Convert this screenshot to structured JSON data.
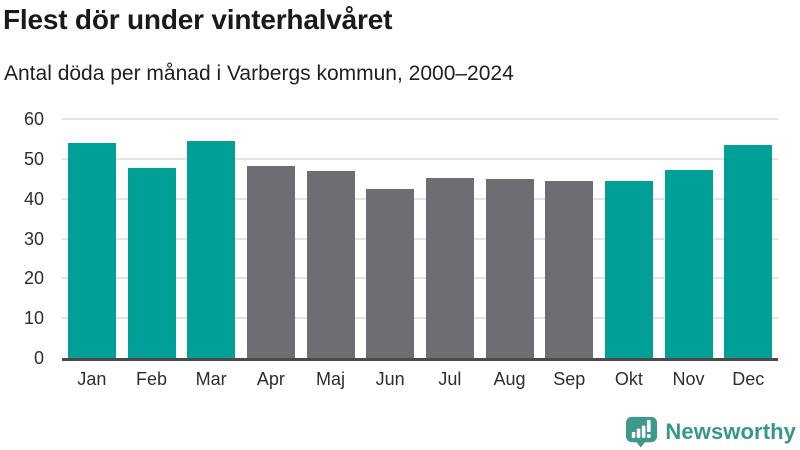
{
  "header": {
    "title": "Flest dör under vinterhalvåret",
    "subtitle": "Antal döda per månad i Varbergs kommun, 2000–2024"
  },
  "chart_data": {
    "type": "bar",
    "title": "Flest dör under vinterhalvåret",
    "subtitle": "Antal döda per månad i Varbergs kommun, 2000–2024",
    "categories": [
      "Jan",
      "Feb",
      "Mar",
      "Apr",
      "Maj",
      "Jun",
      "Jul",
      "Aug",
      "Sep",
      "Okt",
      "Nov",
      "Dec"
    ],
    "values": [
      54.0,
      47.7,
      54.4,
      48.2,
      47.0,
      42.5,
      45.2,
      44.9,
      44.4,
      44.4,
      47.2,
      53.5
    ],
    "highlighted": [
      true,
      true,
      true,
      false,
      false,
      false,
      false,
      false,
      false,
      true,
      true,
      true
    ],
    "highlight_color": "#00a099",
    "muted_color": "#6e6d73",
    "xlabel": "",
    "ylabel": "",
    "ylim": [
      0,
      60
    ],
    "y_ticks": [
      0,
      10,
      20,
      30,
      40,
      50,
      60
    ],
    "grid": "horizontal",
    "legend": "none"
  },
  "footer": {
    "brand_name": "Newsworthy",
    "brand_color": "#38978d",
    "logo_icon": "bar-chart-speech-bubble-icon"
  }
}
